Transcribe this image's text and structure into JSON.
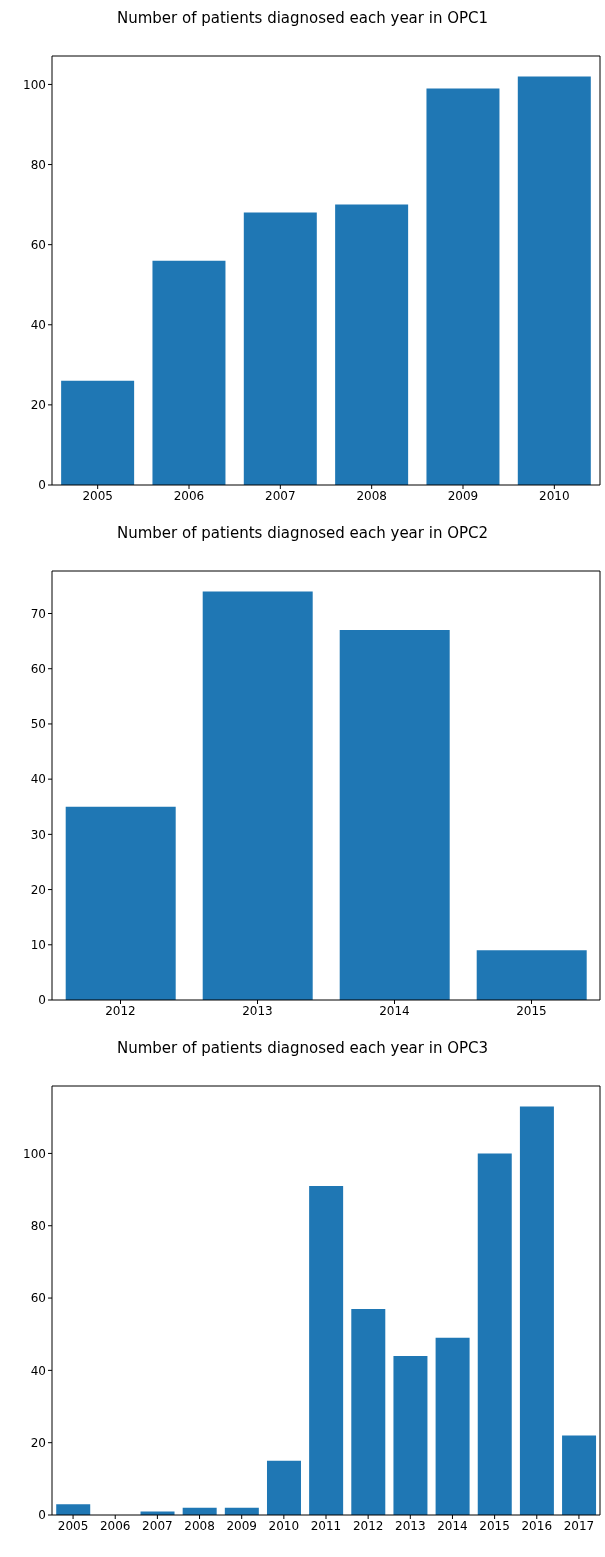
{
  "chart_data": [
    {
      "type": "bar",
      "title": "Number of patients diagnosed each year in OPC1",
      "categories": [
        "2005",
        "2006",
        "2007",
        "2008",
        "2009",
        "2010"
      ],
      "values": [
        26,
        56,
        68,
        70,
        99,
        102
      ],
      "color": "#1f77b4",
      "ylim": [
        0,
        107.1
      ],
      "yticks": [
        0,
        20,
        40,
        60,
        80,
        100
      ]
    },
    {
      "type": "bar",
      "title": "Number of patients diagnosed each year in OPC2",
      "categories": [
        "2012",
        "2013",
        "2014",
        "2015"
      ],
      "values": [
        35,
        74,
        67,
        9
      ],
      "color": "#1f77b4",
      "ylim": [
        0,
        77.7
      ],
      "yticks": [
        0,
        10,
        20,
        30,
        40,
        50,
        60,
        70
      ]
    },
    {
      "type": "bar",
      "title": "Number of patients diagnosed each year in OPC3",
      "categories": [
        "2005",
        "2006",
        "2007",
        "2008",
        "2009",
        "2010",
        "2011",
        "2012",
        "2013",
        "2014",
        "2015",
        "2016",
        "2017"
      ],
      "values": [
        3,
        0,
        1,
        2,
        2,
        15,
        91,
        57,
        44,
        49,
        100,
        113,
        22
      ],
      "color": "#1f77b4",
      "ylim": [
        0,
        118.65
      ],
      "yticks": [
        0,
        20,
        40,
        60,
        80,
        100
      ]
    }
  ]
}
